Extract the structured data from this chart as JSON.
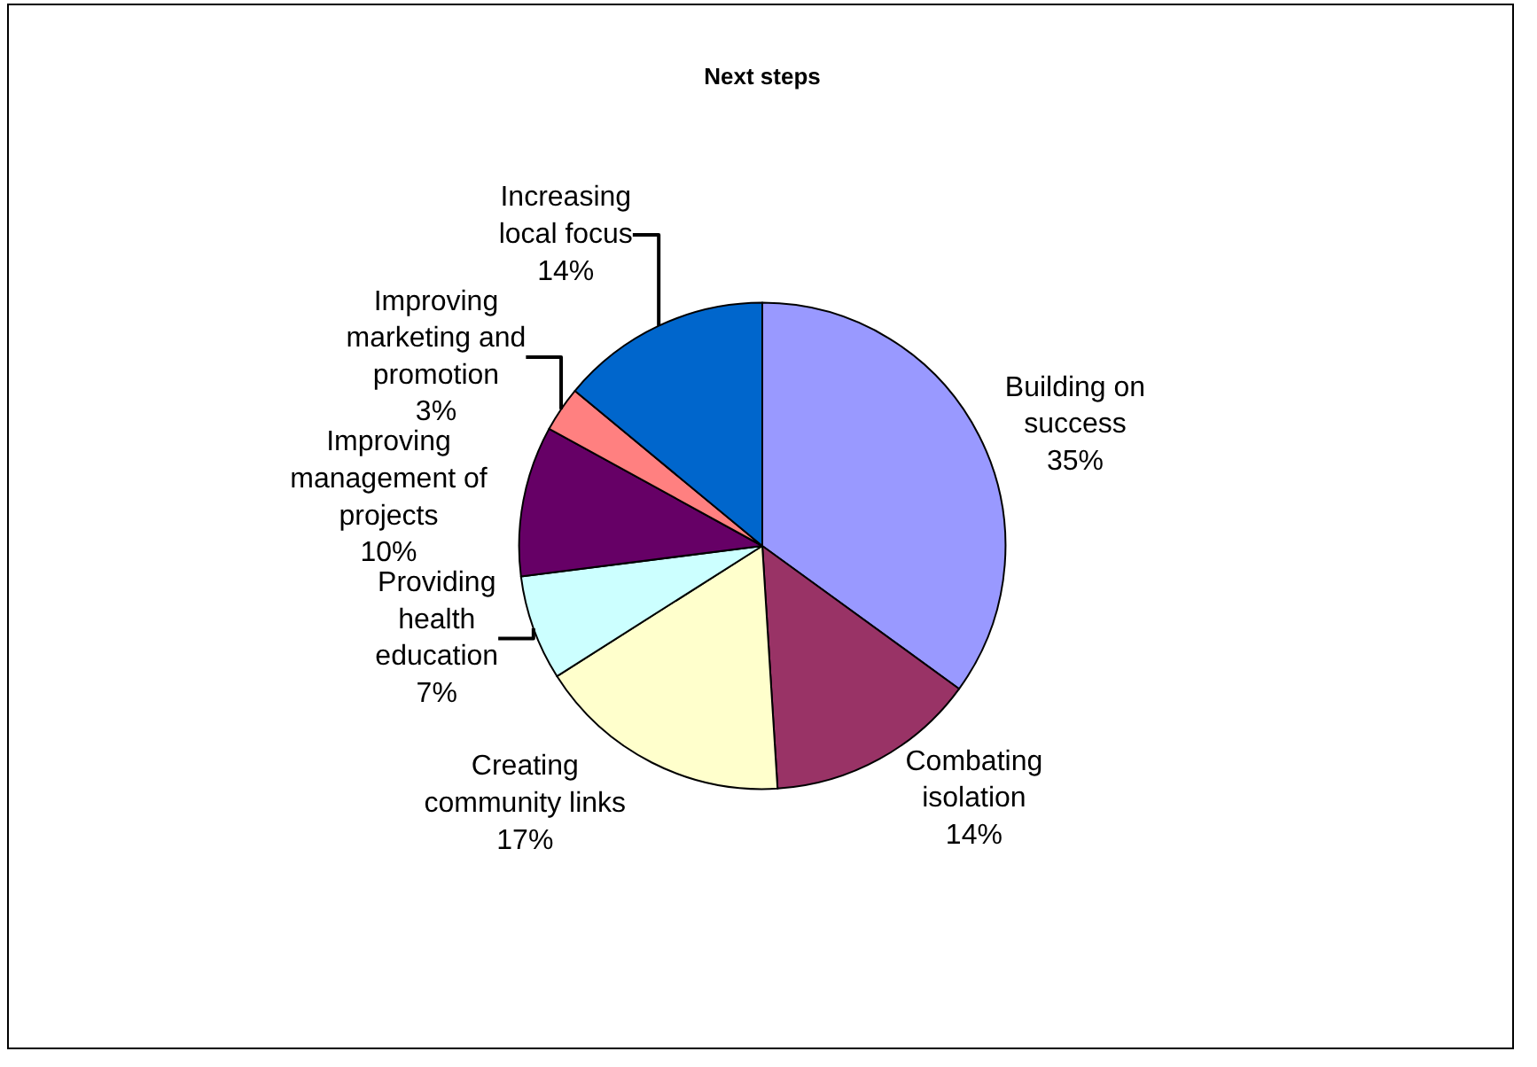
{
  "chart_data": {
    "type": "pie",
    "title": "Next steps",
    "categories": [
      "Building on success",
      "Combating isolation",
      "Creating community links",
      "Providing health education",
      "Improving management of projects",
      "Improving marketing and promotion",
      "Increasing local focus"
    ],
    "values": [
      35,
      14,
      17,
      7,
      10,
      3,
      14
    ],
    "value_labels": [
      "35%",
      "14%",
      "17%",
      "7%",
      "10%",
      "3%",
      "14%"
    ],
    "colors": [
      "#9999ff",
      "#993366",
      "#ffffcc",
      "#ccffff",
      "#660066",
      "#ff8080",
      "#0066cc"
    ],
    "legend": false
  }
}
